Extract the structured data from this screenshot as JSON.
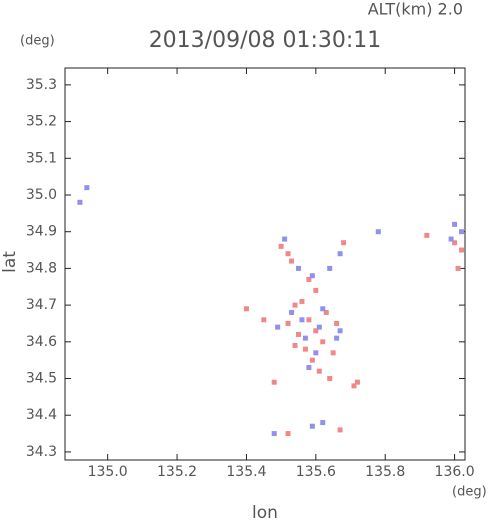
{
  "chart_data": {
    "type": "scatter",
    "title": "2013/09/08 01:30:11",
    "annotation": "ALT(km) 2.0",
    "y_unit": "(deg)",
    "x_unit": "(deg)",
    "xlabel": "lon",
    "ylabel": "lat",
    "xlim": [
      134.877,
      136.03
    ],
    "ylim": [
      34.278,
      35.346
    ],
    "xticks": [
      {
        "value": 135,
        "label": "135.0"
      },
      135.2,
      135.4,
      135.6,
      135.8,
      {
        "value": 136,
        "label": "136.0"
      }
    ],
    "yticks": [
      34.3,
      34.4,
      34.5,
      34.6,
      34.7,
      34.8,
      34.9,
      {
        "value": 35,
        "label": "35.0"
      },
      35.1,
      35.2,
      35.3
    ],
    "series": [
      {
        "color": "#f08888",
        "x": [
          135.52,
          135.53,
          135.5,
          135.58,
          135.6,
          135.62,
          135.55,
          135.57,
          135.59,
          135.63,
          135.54,
          135.65,
          135.61,
          135.48,
          135.71,
          135.72,
          135.45,
          135.4,
          135.56,
          135.6,
          135.66,
          135.92,
          136.0,
          136.02,
          136.01,
          135.64,
          135.54,
          135.52,
          135.58,
          135.67,
          135.68,
          135.52
        ],
        "values": [
          34.84,
          34.82,
          34.86,
          34.66,
          34.63,
          34.6,
          34.62,
          34.58,
          34.55,
          34.68,
          34.7,
          34.57,
          34.52,
          34.49,
          34.48,
          34.49,
          34.66,
          34.69,
          34.71,
          34.74,
          34.65,
          34.89,
          34.87,
          34.85,
          34.8,
          34.5,
          34.59,
          34.65,
          34.77,
          34.36,
          34.87,
          34.35
        ]
      },
      {
        "color": "#9090f0",
        "x": [
          134.94,
          134.92,
          135.51,
          135.55,
          135.59,
          135.61,
          135.56,
          135.66,
          135.57,
          135.62,
          135.53,
          135.49,
          135.58,
          135.64,
          135.67,
          135.78,
          136.0,
          136.02,
          135.99,
          135.62,
          135.59,
          135.48,
          135.6,
          135.67
        ],
        "values": [
          35.02,
          34.98,
          34.88,
          34.8,
          34.78,
          34.64,
          34.66,
          34.61,
          34.61,
          34.69,
          34.68,
          34.64,
          34.53,
          34.8,
          34.84,
          34.9,
          34.92,
          34.9,
          34.88,
          34.38,
          34.37,
          34.35,
          34.57,
          34.63
        ]
      }
    ]
  }
}
